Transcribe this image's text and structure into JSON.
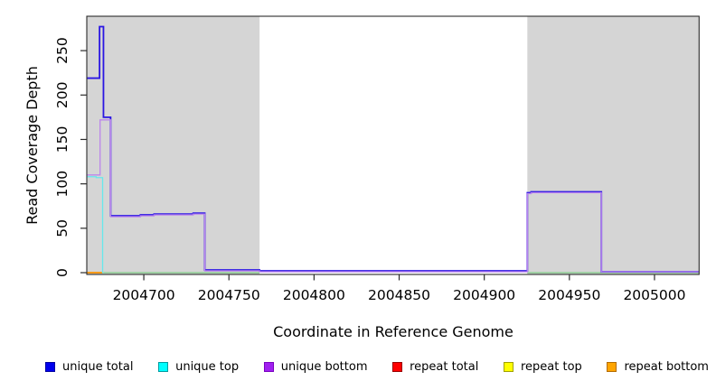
{
  "chart_data": {
    "type": "line",
    "title": "",
    "xlabel": "Coordinate in Reference Genome",
    "ylabel": "Read Coverage Depth",
    "xlim": [
      2004666.5,
      2005026.2
    ],
    "ylim": [
      -2,
      288.7
    ],
    "x_ticks": [
      2004700,
      2004750,
      2004800,
      2004850,
      2004900,
      2004950,
      2005000
    ],
    "y_ticks": [
      0,
      50,
      100,
      150,
      200,
      250
    ],
    "grid": false,
    "legend_position": "bottom-horizontal",
    "axis_color": "#2b2b2b",
    "background_regions": [
      {
        "name": "masked-left",
        "x0": 2004666.5,
        "x1": 2004768.0,
        "color": "#d5d5d5"
      },
      {
        "name": "masked-right",
        "x0": 2004925.3,
        "x1": 2005026.2,
        "color": "#d5d5d5"
      }
    ],
    "baseline_segments": [
      {
        "x0": 2004676.2,
        "x1": 2004768.0,
        "y": 0,
        "color": "#86cf8e"
      },
      {
        "x0": 2004925.3,
        "x1": 2005026.2,
        "y": 0,
        "color": "#86cf8e"
      }
    ],
    "series": [
      {
        "name": "repeat total",
        "color": "#ee0000",
        "width": 1.3,
        "steps": [
          [
            2004666.5,
            0
          ]
        ],
        "x_end": 2004676.2
      },
      {
        "name": "repeat top",
        "color": "#f5e900",
        "width": 1.3,
        "steps": [
          [
            2004666.5,
            0
          ]
        ],
        "x_end": 2004676.2
      },
      {
        "name": "repeat bottom",
        "color": "#ff9500",
        "width": 1.6,
        "steps": [
          [
            2004666.5,
            0
          ]
        ],
        "x_end": 2004676.2
      },
      {
        "name": "unique top",
        "color": "#66e8ec",
        "width": 1.3,
        "steps": [
          [
            2004666.5,
            108
          ],
          [
            2004672.0,
            107
          ],
          [
            2004675.8,
            0
          ]
        ],
        "x_end": 2004676.5
      },
      {
        "name": "unique total",
        "color": "#2b16e3",
        "width": 1.8,
        "steps": [
          [
            2004666.5,
            219
          ],
          [
            2004674.0,
            277
          ],
          [
            2004676.3,
            175
          ],
          [
            2004680.5,
            64
          ],
          [
            2004698.0,
            65
          ],
          [
            2004706.0,
            66
          ],
          [
            2004729.0,
            67
          ],
          [
            2004735.8,
            3
          ],
          [
            2004768.0,
            2
          ],
          [
            2004925.3,
            90
          ],
          [
            2004927.5,
            91
          ],
          [
            2004968.8,
            1
          ]
        ],
        "x_end": 2005026.2
      },
      {
        "name": "unique bottom",
        "color": "#bb86ec",
        "width": 1.3,
        "steps": [
          [
            2004666.5,
            110
          ],
          [
            2004674.3,
            172
          ],
          [
            2004680.5,
            63
          ],
          [
            2004698.0,
            64
          ],
          [
            2004706.0,
            65
          ],
          [
            2004729.0,
            66
          ],
          [
            2004735.8,
            2
          ],
          [
            2004768.0,
            1
          ],
          [
            2004925.3,
            89
          ],
          [
            2004927.5,
            90
          ],
          [
            2004968.8,
            1
          ]
        ],
        "x_end": 2005026.2
      }
    ],
    "legend": [
      {
        "label": "unique total",
        "fill": "#0000ee",
        "border": "#0000a0"
      },
      {
        "label": "unique top",
        "fill": "#00ffff",
        "border": "#009aa0"
      },
      {
        "label": "unique bottom",
        "fill": "#a020f0",
        "border": "#7a00c0"
      },
      {
        "label": "repeat total",
        "fill": "#ff0000",
        "border": "#990000"
      },
      {
        "label": "repeat top",
        "fill": "#ffff00",
        "border": "#a0a000"
      },
      {
        "label": "repeat bottom",
        "fill": "#ffa500",
        "border": "#b36b00"
      }
    ]
  }
}
